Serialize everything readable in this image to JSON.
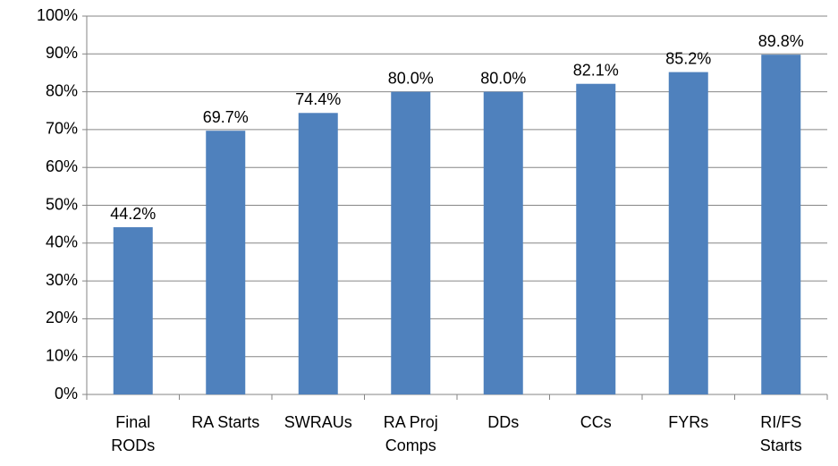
{
  "chart_data": {
    "type": "bar",
    "categories": [
      "Final RODs",
      "RA Starts",
      "SWRAUs",
      "RA Proj Comps",
      "DDs",
      "CCs",
      "FYRs",
      "RI/FS Starts"
    ],
    "values": [
      44.2,
      69.7,
      74.4,
      80.0,
      80.0,
      82.1,
      85.2,
      89.8
    ],
    "value_labels": [
      "44.2%",
      "69.7%",
      "74.4%",
      "80.0%",
      "80.0%",
      "82.1%",
      "85.2%",
      "89.8%"
    ],
    "color": "#4f81bd",
    "ylim": [
      0,
      100
    ],
    "yticks": [
      {
        "value": 0,
        "label": "0%"
      },
      {
        "value": 10,
        "label": "10%"
      },
      {
        "value": 20,
        "label": "20%"
      },
      {
        "value": 30,
        "label": "30%"
      },
      {
        "value": 40,
        "label": "40%"
      },
      {
        "value": 50,
        "label": "50%"
      },
      {
        "value": 60,
        "label": "60%"
      },
      {
        "value": 70,
        "label": "70%"
      },
      {
        "value": 80,
        "label": "80%"
      },
      {
        "value": 90,
        "label": "90%"
      },
      {
        "value": 100,
        "label": "100%"
      }
    ],
    "grid": true
  }
}
